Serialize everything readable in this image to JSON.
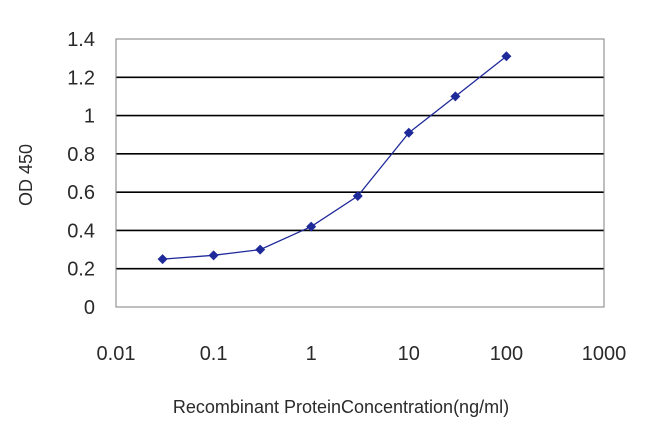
{
  "chart_data": {
    "type": "line",
    "title": "",
    "xlabel": "Recombinant ProteinConcentration(ng/ml)",
    "ylabel": "OD 450",
    "x_scale": "log",
    "xlim": [
      0.01,
      1000
    ],
    "ylim": [
      0,
      1.4
    ],
    "x_ticks": [
      "0.01",
      "0.1",
      "1",
      "10",
      "100",
      "1000"
    ],
    "y_ticks": [
      "0",
      "0.2",
      "0.4",
      "0.6",
      "0.8",
      "1",
      "1.2",
      "1.4"
    ],
    "grid": "horizontal",
    "legend": "none",
    "series": [
      {
        "x": [
          0.03,
          0.1,
          0.3,
          1,
          3,
          10,
          30,
          100
        ],
        "y": [
          0.25,
          0.27,
          0.3,
          0.42,
          0.58,
          0.91,
          1.1,
          1.31
        ]
      }
    ],
    "colors": {
      "series": "#1f2a9a",
      "grid": "#000000",
      "frame": "#7f7f7f"
    }
  }
}
